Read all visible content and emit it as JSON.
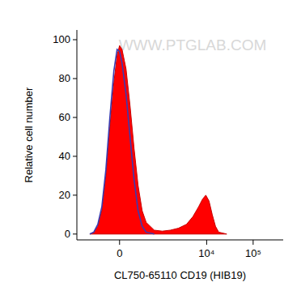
{
  "chart_data": {
    "type": "area",
    "x_label": "CL750-65110 CD19 (HIB19)",
    "y_label": "Relative cell number",
    "annotations": [
      {
        "text": "WWW.PTGLAB.COM"
      }
    ],
    "log": "x",
    "xlim": [
      -1000,
      440000
    ],
    "ylim": [
      -3,
      105
    ],
    "xticks": [
      0,
      {
        "value": 10000,
        "label": "10⁴"
      },
      {
        "value": 100000,
        "label": "10⁵"
      }
    ],
    "yticks": [
      0,
      20,
      40,
      60,
      80,
      100
    ],
    "series": [
      {
        "type": "area",
        "color": "#ff0000",
        "x": [
          -464,
          -356,
          -267,
          -194,
          -134,
          -85,
          -45,
          -18,
          0,
          18,
          52,
          94,
          145,
          207,
          284,
          377,
          627,
          1000,
          1557,
          2383,
          3614,
          5018,
          6670,
          8160,
          9590,
          11260,
          13220,
          15530,
          18210,
          27100
        ],
        "values": [
          0,
          1,
          4,
          12,
          30,
          55,
          78,
          92,
          97,
          95,
          85,
          66,
          44,
          25,
          12,
          6,
          2,
          1.5,
          2,
          3,
          5,
          9,
          14,
          18,
          20,
          17,
          10,
          4,
          1,
          0
        ]
      },
      {
        "type": "line",
        "color": "#3b3bb0",
        "x": [
          -464,
          -356,
          -267,
          -194,
          -134,
          -85,
          -45,
          -18,
          0,
          18,
          52,
          94,
          145,
          207,
          284,
          377,
          627
        ],
        "values": [
          0,
          1,
          5,
          14,
          33,
          60,
          84,
          95,
          94,
          88,
          72,
          50,
          28,
          12,
          4,
          1,
          0
        ]
      }
    ]
  }
}
